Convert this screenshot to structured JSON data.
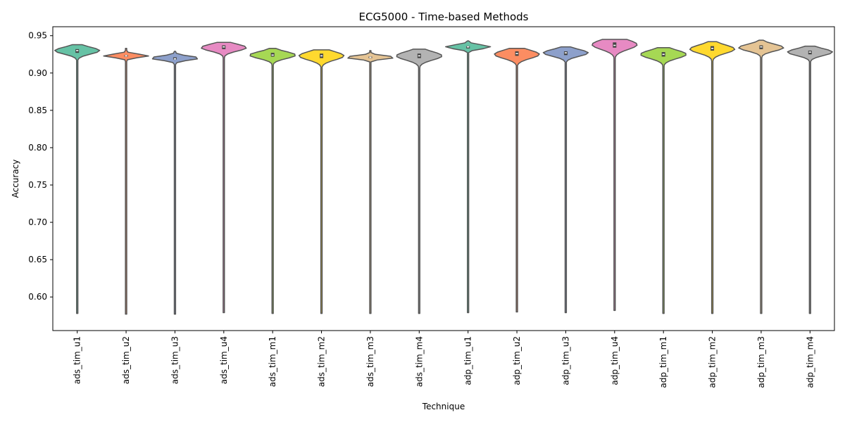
{
  "chart_data": {
    "type": "violin",
    "title": "ECG5000 - Time-based Methods",
    "xlabel": "Technique",
    "ylabel": "Accuracy",
    "ylim": [
      0.555,
      0.962
    ],
    "yticks": [
      "0.60",
      "0.65",
      "0.70",
      "0.75",
      "0.80",
      "0.85",
      "0.90",
      "0.95"
    ],
    "grid": false,
    "legend": "none",
    "categories": [
      "ads_tim_u1",
      "ads_tim_u2",
      "ads_tim_u3",
      "ads_tim_u4",
      "ads_tim_m1",
      "ads_tim_m2",
      "ads_tim_m3",
      "ads_tim_m4",
      "adp_tim_u1",
      "adp_tim_u2",
      "adp_tim_u3",
      "adp_tim_u4",
      "adp_tim_m1",
      "adp_tim_m2",
      "adp_tim_m3",
      "adp_tim_m4"
    ],
    "colors": [
      "#66c2a5",
      "#fc8d62",
      "#8da0cb",
      "#e78ac3",
      "#a6d854",
      "#ffd92f",
      "#e5c494",
      "#b3b3b3",
      "#66c2a5",
      "#fc8d62",
      "#8da0cb",
      "#e78ac3",
      "#a6d854",
      "#ffd92f",
      "#e5c494",
      "#b3b3b3"
    ],
    "violins": [
      {
        "min": 0.578,
        "max": 0.938,
        "q1": 0.927,
        "median": 0.93,
        "q3": 0.932,
        "mode": 0.93,
        "width": 0.4
      },
      {
        "min": 0.577,
        "max": 0.933,
        "q1": 0.922,
        "median": 0.923,
        "q3": 0.924,
        "mode": 0.923,
        "width": 0.4
      },
      {
        "min": 0.577,
        "max": 0.929,
        "q1": 0.918,
        "median": 0.919,
        "q3": 0.921,
        "mode": 0.92,
        "width": 0.4
      },
      {
        "min": 0.579,
        "max": 0.941,
        "q1": 0.932,
        "median": 0.935,
        "q3": 0.937,
        "mode": 0.934,
        "width": 0.4
      },
      {
        "min": 0.578,
        "max": 0.933,
        "q1": 0.922,
        "median": 0.924,
        "q3": 0.927,
        "mode": 0.924,
        "width": 0.4
      },
      {
        "min": 0.578,
        "max": 0.931,
        "q1": 0.92,
        "median": 0.923,
        "q3": 0.926,
        "mode": 0.923,
        "width": 0.4
      },
      {
        "min": 0.578,
        "max": 0.93,
        "q1": 0.92,
        "median": 0.921,
        "q3": 0.922,
        "mode": 0.921,
        "width": 0.4
      },
      {
        "min": 0.578,
        "max": 0.932,
        "q1": 0.92,
        "median": 0.923,
        "q3": 0.926,
        "mode": 0.923,
        "width": 0.4
      },
      {
        "min": 0.579,
        "max": 0.943,
        "q1": 0.933,
        "median": 0.935,
        "q3": 0.936,
        "mode": 0.935,
        "width": 0.4
      },
      {
        "min": 0.58,
        "max": 0.933,
        "q1": 0.923,
        "median": 0.926,
        "q3": 0.929,
        "mode": 0.925,
        "width": 0.4
      },
      {
        "min": 0.579,
        "max": 0.935,
        "q1": 0.924,
        "median": 0.927,
        "q3": 0.929,
        "mode": 0.927,
        "width": 0.4
      },
      {
        "min": 0.582,
        "max": 0.945,
        "q1": 0.934,
        "median": 0.937,
        "q3": 0.941,
        "mode": 0.938,
        "width": 0.4
      },
      {
        "min": 0.578,
        "max": 0.934,
        "q1": 0.922,
        "median": 0.925,
        "q3": 0.928,
        "mode": 0.925,
        "width": 0.4
      },
      {
        "min": 0.578,
        "max": 0.942,
        "q1": 0.93,
        "median": 0.933,
        "q3": 0.936,
        "mode": 0.932,
        "width": 0.4
      },
      {
        "min": 0.578,
        "max": 0.944,
        "q1": 0.932,
        "median": 0.935,
        "q3": 0.937,
        "mode": 0.934,
        "width": 0.4
      },
      {
        "min": 0.578,
        "max": 0.936,
        "q1": 0.925,
        "median": 0.928,
        "q3": 0.93,
        "mode": 0.928,
        "width": 0.4
      }
    ]
  }
}
